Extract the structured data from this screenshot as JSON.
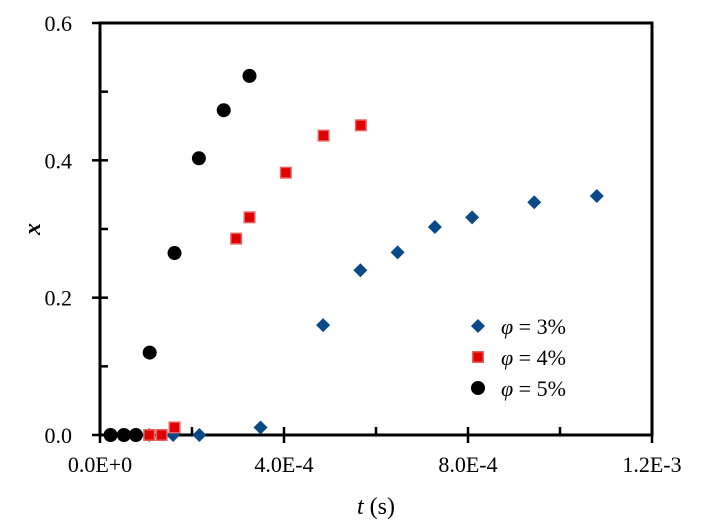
{
  "chart_data": {
    "type": "scatter",
    "title": "",
    "xlabel": "t (s)",
    "xlabel_italic_part": "t",
    "xlabel_rest": " (s)",
    "ylabel": "x",
    "xlim": [
      0,
      0.0012
    ],
    "ylim": [
      0,
      0.6
    ],
    "x_major_ticks": [
      0,
      0.0004,
      0.0008,
      0.0012
    ],
    "x_tick_labels": [
      "0.0E+0",
      "4.0E-4",
      "8.0E-4",
      "1.2E-3"
    ],
    "x_minor_ticks": [
      0.0002,
      0.0006,
      0.001
    ],
    "y_major_ticks": [
      0,
      0.2,
      0.4,
      0.6
    ],
    "y_tick_labels": [
      "0.0",
      "0.2",
      "0.4",
      "0.6"
    ],
    "y_minor_ticks": [
      0.1,
      0.3,
      0.5
    ],
    "grid": false,
    "legend_position": "lower right (inside)",
    "series": [
      {
        "name": "φ = 3%",
        "legend_symbol": "φ",
        "legend_value": " = 3%",
        "marker": "diamond",
        "color": "#0b4a86",
        "points": [
          [
            0.000107,
            0.0
          ],
          [
            0.000159,
            0.0
          ],
          [
            0.000216,
            0.0
          ],
          [
            0.000349,
            0.011
          ],
          [
            0.000485,
            0.16
          ],
          [
            0.000566,
            0.24
          ],
          [
            0.000647,
            0.266
          ],
          [
            0.000728,
            0.303
          ],
          [
            0.000809,
            0.317
          ],
          [
            0.000944,
            0.339
          ],
          [
            0.00108,
            0.348
          ]
        ]
      },
      {
        "name": "φ = 4%",
        "legend_symbol": "φ",
        "legend_value": " = 4%",
        "marker": "square",
        "color": "#e00000",
        "edge_color": "#e86060",
        "points": [
          [
            0.000107,
            0.0
          ],
          [
            0.000134,
            0.0
          ],
          [
            0.000162,
            0.011
          ],
          [
            0.000296,
            0.286
          ],
          [
            0.000325,
            0.317
          ],
          [
            0.000404,
            0.382
          ],
          [
            0.000486,
            0.436
          ],
          [
            0.000567,
            0.451
          ]
        ]
      },
      {
        "name": "φ = 5%",
        "legend_symbol": "φ",
        "legend_value": " = 5%",
        "marker": "circle",
        "color": "#000000",
        "points": [
          [
            2.3e-05,
            0.0
          ],
          [
            5.2e-05,
            0.0
          ],
          [
            7.8e-05,
            0.0
          ],
          [
            0.000108,
            0.12
          ],
          [
            0.000162,
            0.265
          ],
          [
            0.000215,
            0.403
          ],
          [
            0.000269,
            0.473
          ],
          [
            0.000325,
            0.523
          ]
        ]
      }
    ]
  }
}
